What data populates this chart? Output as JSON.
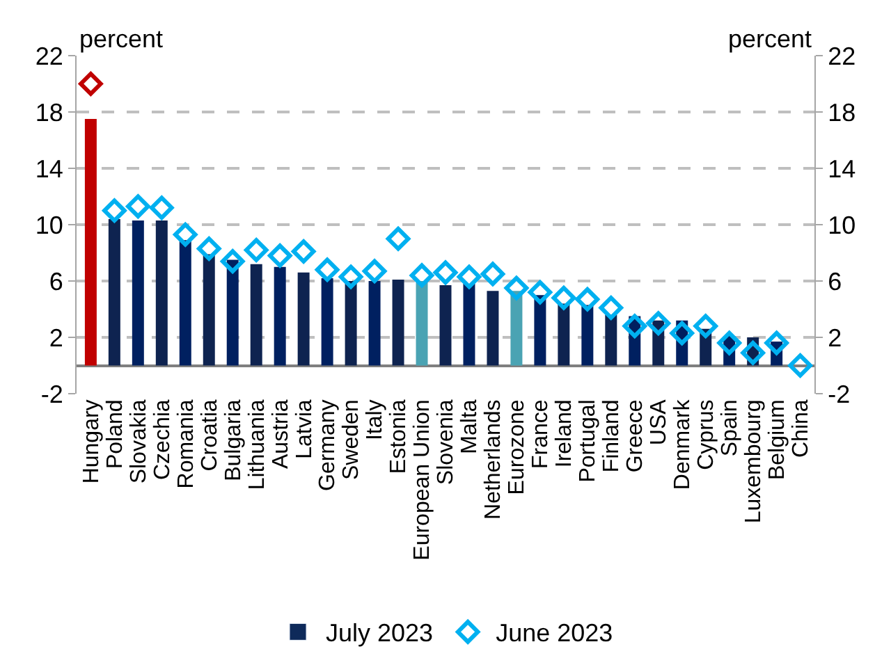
{
  "chart_data": {
    "type": "bar",
    "ylabel": "percent",
    "y2label": "percent",
    "categories": [
      "Hungary",
      "Poland",
      "Slovakia",
      "Czechia",
      "Romania",
      "Croatia",
      "Bulgaria",
      "Lithuania",
      "Austria",
      "Latvia",
      "Germany",
      "Sweden",
      "Italy",
      "Estonia",
      "European Union",
      "Slovenia",
      "Malta",
      "Netherlands",
      "Eurozone",
      "France",
      "Ireland",
      "Portugal",
      "Finland",
      "Greece",
      "USA",
      "Denmark",
      "Cyprus",
      "Spain",
      "Luxembourg",
      "Belgium",
      "China"
    ],
    "series": [
      {
        "name": "July 2023",
        "color": "#0e2a5a",
        "colors": [
          "#c00000",
          "#0e2350",
          "#002060",
          "#0e2350",
          "#002060",
          "#0e2350",
          "#002060",
          "#0e2350",
          "#002060",
          "#0e2350",
          "#002060",
          "#0e2350",
          "#002060",
          "#0e2350",
          "#4aa3b3",
          "#0e2350",
          "#002060",
          "#0e2350",
          "#4aa3b3",
          "#002060",
          "#0e2350",
          "#002060",
          "#0e2350",
          "#002060",
          "#0e2350",
          "#002060",
          "#0e2350",
          "#002060",
          "#0e2350",
          "#002060",
          "#0e2350"
        ],
        "values": [
          17.5,
          10.4,
          10.3,
          10.3,
          8.9,
          7.9,
          7.5,
          7.2,
          7.0,
          6.6,
          6.2,
          6.0,
          6.0,
          6.1,
          6.0,
          5.7,
          5.8,
          5.3,
          5.3,
          5.0,
          4.4,
          4.3,
          3.6,
          3.5,
          3.2,
          3.2,
          2.6,
          2.1,
          2.0,
          1.7,
          null
        ]
      },
      {
        "name": "June 2023",
        "type": "scatter",
        "marker": "diamond",
        "color": "#00b0f0",
        "colors": [
          "#c00000",
          "#00b0f0",
          "#00b0f0",
          "#00b0f0",
          "#00b0f0",
          "#00b0f0",
          "#00b0f0",
          "#00b0f0",
          "#00b0f0",
          "#00b0f0",
          "#00b0f0",
          "#00b0f0",
          "#00b0f0",
          "#00b0f0",
          "#00b0f0",
          "#00b0f0",
          "#00b0f0",
          "#00b0f0",
          "#00b0f0",
          "#00b0f0",
          "#00b0f0",
          "#00b0f0",
          "#00b0f0",
          "#00b0f0",
          "#00b0f0",
          "#00b0f0",
          "#00b0f0",
          "#00b0f0",
          "#00b0f0",
          "#00b0f0",
          "#00b0f0"
        ],
        "values": [
          20.0,
          11.0,
          11.3,
          11.2,
          9.3,
          8.3,
          7.4,
          8.2,
          7.8,
          8.1,
          6.8,
          6.3,
          6.7,
          9.0,
          6.4,
          6.6,
          6.3,
          6.5,
          5.5,
          5.2,
          4.8,
          4.7,
          4.1,
          2.8,
          3.0,
          2.3,
          2.8,
          1.6,
          0.9,
          1.6,
          0.0
        ]
      }
    ],
    "ylim": [
      -2,
      22
    ],
    "yticks": [
      -2,
      2,
      6,
      10,
      14,
      18,
      22
    ],
    "y2lim": [
      -2,
      22
    ],
    "y2ticks": [
      -2,
      2,
      6,
      10,
      14,
      18,
      22
    ],
    "grid": "y",
    "legend": "bottom"
  }
}
